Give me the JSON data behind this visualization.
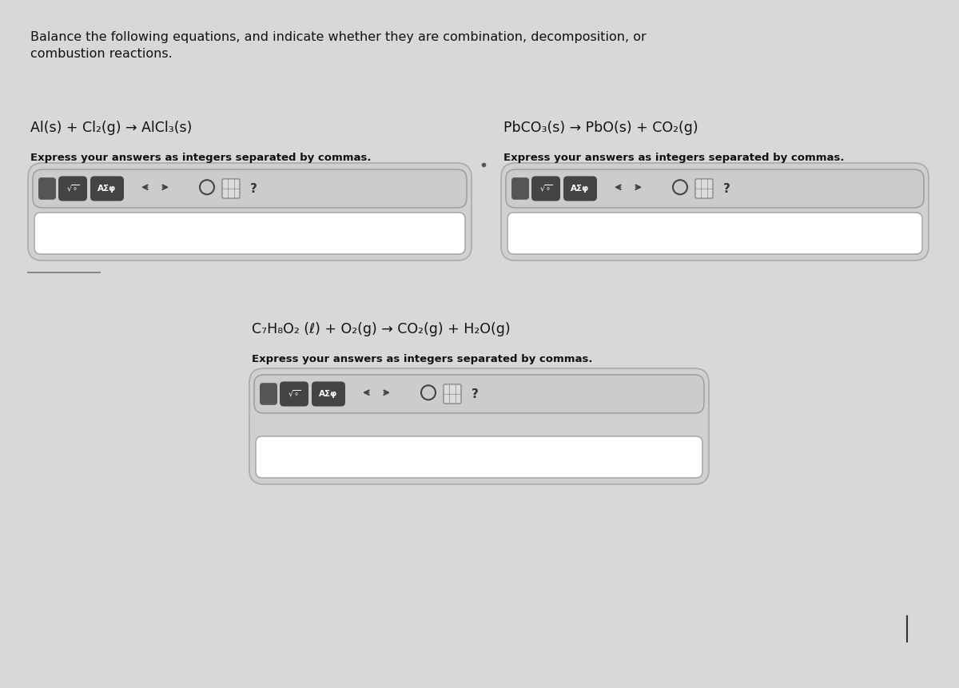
{
  "bg_color": "#d8d8d8",
  "panel_bg": "#e8e8e8",
  "white": "#ffffff",
  "dark_gray": "#333333",
  "header_text": "Balance the following equations, and indicate whether they are combination, decomposition, or\ncombustion reactions.",
  "eq1": "Al(s) + Cl₂(g) → AlCl₃(s)",
  "eq1_label": "Express your answers as integers separated by commas.",
  "eq2": "PbCO₃(s) → PbO(s) + CO₂(g)",
  "eq2_label": "Express your answers as integers separated by commas.",
  "eq3": "C₇H₈O₂ (ℓ) + O₂(g) → CO₂(g) + H₂O(g)",
  "eq3_label": "Express your answers as integers separated by commas.",
  "toolbar_color": "#555555",
  "toolbar_text_color": "#ffffff",
  "input_box_color": "#ffffff",
  "border_color": "#aaaaaa",
  "button_dark": "#444444",
  "question_mark": "?",
  "asephi": "AΣφ"
}
